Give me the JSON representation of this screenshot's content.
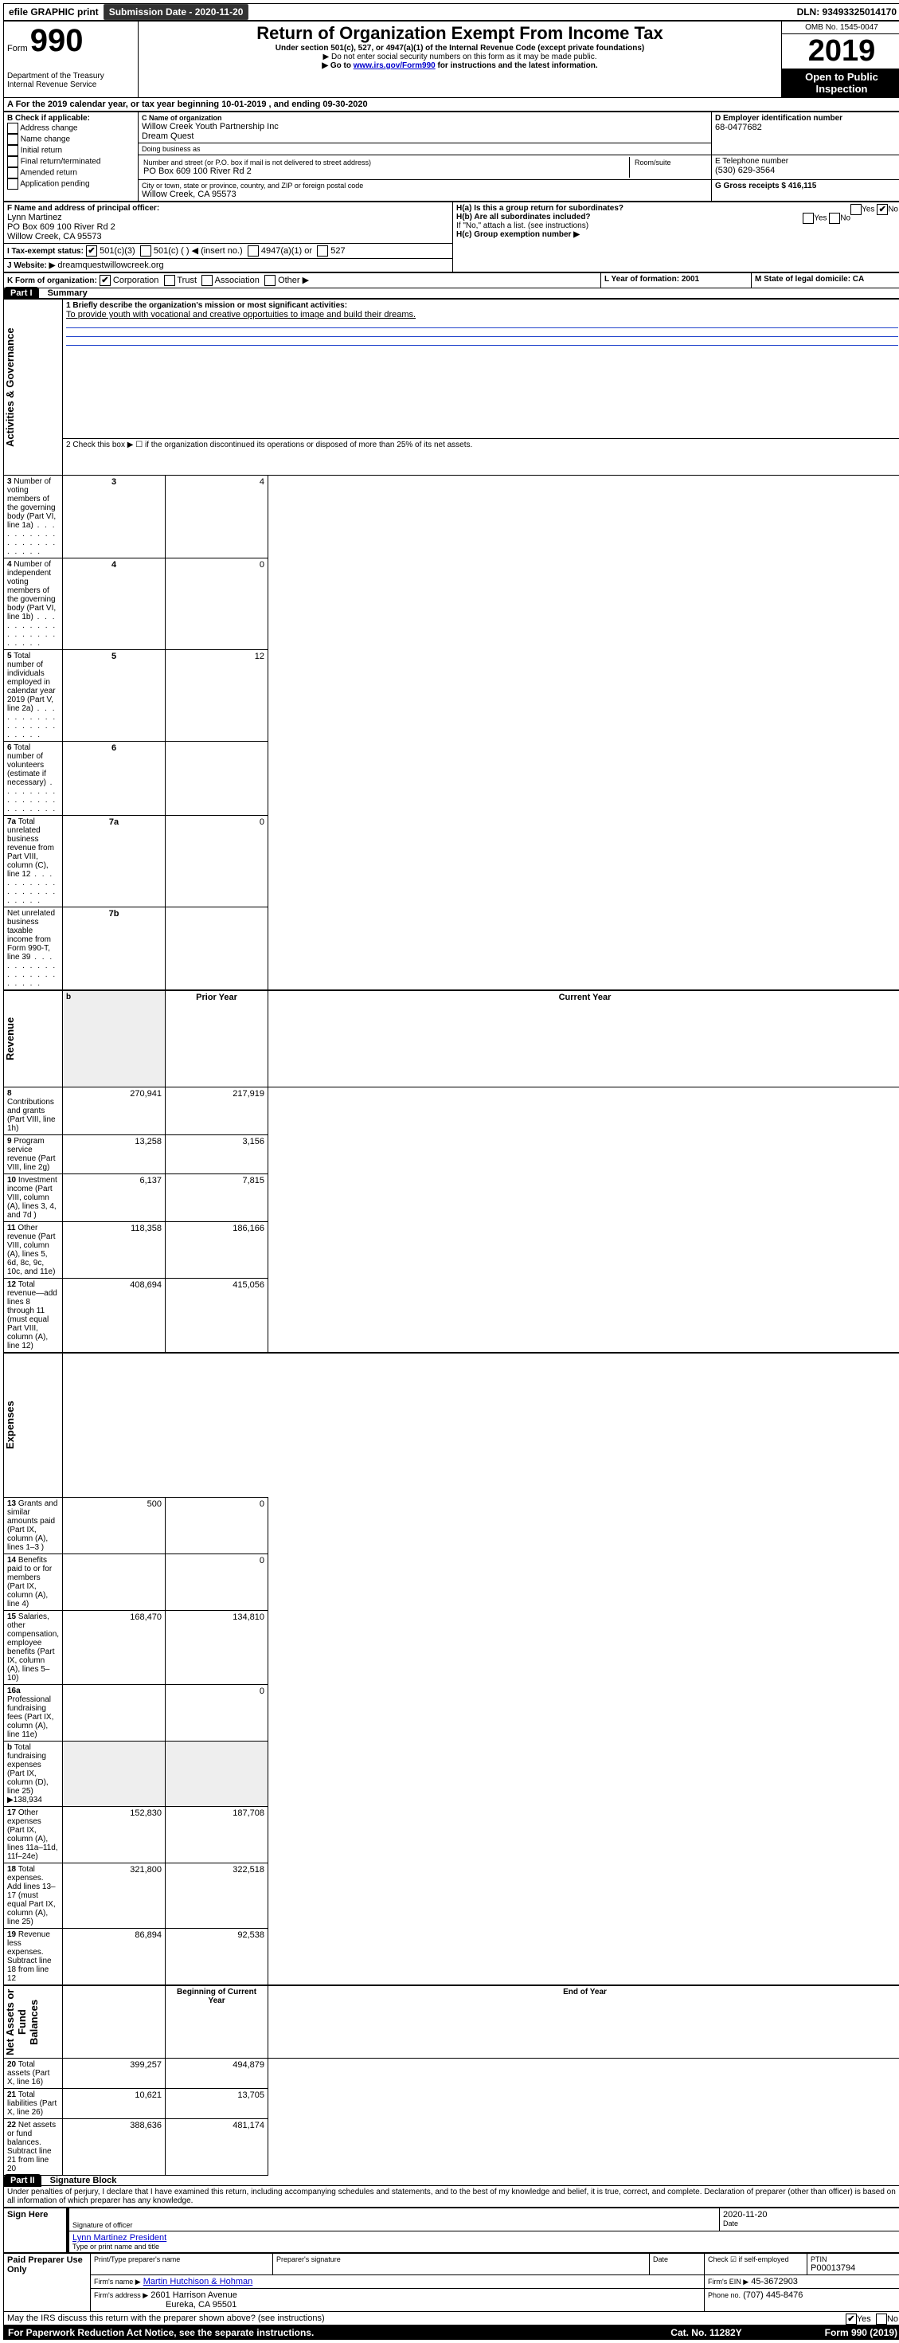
{
  "topbar": {
    "efile": "efile GRAPHIC print",
    "submission_label": "Submission Date - 2020-11-20",
    "dln_label": "DLN: 93493325014170"
  },
  "header": {
    "form_label": "Form",
    "form_number": "990",
    "title": "Return of Organization Exempt From Income Tax",
    "subtitle": "Under section 501(c), 527, or 4947(a)(1) of the Internal Revenue Code (except private foundations)",
    "note1": "▶ Do not enter social security numbers on this form as it may be made public.",
    "note2_pre": "▶ Go to ",
    "note2_link": "www.irs.gov/Form990",
    "note2_post": " for instructions and the latest information.",
    "dept": "Department of the Treasury\nInternal Revenue Service",
    "omb": "OMB No. 1545-0047",
    "year": "2019",
    "open_public": "Open to Public Inspection"
  },
  "A": {
    "line": "A For the 2019 calendar year, or tax year beginning 10-01-2019  , and ending 09-30-2020"
  },
  "B": {
    "title": "B Check if applicable:",
    "opts": [
      "Address change",
      "Name change",
      "Initial return",
      "Final return/terminated",
      "Amended return",
      "Application pending"
    ]
  },
  "C": {
    "name_lbl": "C Name of organization",
    "name": "Willow Creek Youth Partnership Inc",
    "dba_lbl": "Doing business as",
    "dba": "Dream Quest",
    "street_lbl": "Number and street (or P.O. box if mail is not delivered to street address)",
    "room_lbl": "Room/suite",
    "street": "PO Box 609 100 River Rd 2",
    "city_lbl": "City or town, state or province, country, and ZIP or foreign postal code",
    "city": "Willow Creek, CA  95573"
  },
  "D": {
    "lbl": "D Employer identification number",
    "val": "68-0477682"
  },
  "E": {
    "lbl": "E Telephone number",
    "val": "(530) 629-3564"
  },
  "G": {
    "lbl": "G Gross receipts $ 416,115"
  },
  "F": {
    "lbl": "F  Name and address of principal officer:",
    "name": "Lynn Martinez",
    "addr1": "PO Box 609 100 River Rd 2",
    "addr2": "Willow Creek, CA  95573"
  },
  "H": {
    "a": "H(a)  Is this a group return for subordinates?",
    "b": "H(b)  Are all subordinates included?",
    "b_note": "If \"No,\" attach a list. (see instructions)",
    "c": "H(c)  Group exemption number ▶",
    "yes": "Yes",
    "no": "No"
  },
  "I": {
    "lbl": "I   Tax-exempt status:",
    "o1": "501(c)(3)",
    "o2": "501(c) (  ) ◀ (insert no.)",
    "o3": "4947(a)(1) or",
    "o4": "527"
  },
  "J": {
    "lbl": "J   Website: ▶",
    "val": "dreamquestwillowcreek.org"
  },
  "K": {
    "lbl": "K Form of organization:",
    "corp": "Corporation",
    "trust": "Trust",
    "assoc": "Association",
    "other": "Other ▶"
  },
  "L": {
    "lbl": "L Year of formation: 2001"
  },
  "M": {
    "lbl": "M State of legal domicile: CA"
  },
  "partI": {
    "badge": "Part I",
    "title": "Summary",
    "q1_lbl": "1  Briefly describe the organization's mission or most significant activities:",
    "q1_val": "To provide youth with vocational and creative opportuities to image and build their dreams.",
    "q2": "2   Check this box ▶ ☐  if the organization discontinued its operations or disposed of more than 25% of its net assets.",
    "lines": [
      {
        "n": "3",
        "t": "Number of voting members of the governing body (Part VI, line 1a)",
        "box": "3",
        "v": "4"
      },
      {
        "n": "4",
        "t": "Number of independent voting members of the governing body (Part VI, line 1b)",
        "box": "4",
        "v": "0"
      },
      {
        "n": "5",
        "t": "Total number of individuals employed in calendar year 2019 (Part V, line 2a)",
        "box": "5",
        "v": "12"
      },
      {
        "n": "6",
        "t": "Total number of volunteers (estimate if necessary)",
        "box": "6",
        "v": ""
      },
      {
        "n": "7a",
        "t": "Total unrelated business revenue from Part VIII, column (C), line 12",
        "box": "7a",
        "v": "0"
      },
      {
        "n": "",
        "t": "Net unrelated business taxable income from Form 990-T, line 39",
        "box": "7b",
        "v": ""
      }
    ],
    "prior": "Prior Year",
    "current": "Current Year",
    "rev": [
      {
        "n": "8",
        "t": "Contributions and grants (Part VIII, line 1h)",
        "p": "270,941",
        "c": "217,919"
      },
      {
        "n": "9",
        "t": "Program service revenue (Part VIII, line 2g)",
        "p": "13,258",
        "c": "3,156"
      },
      {
        "n": "10",
        "t": "Investment income (Part VIII, column (A), lines 3, 4, and 7d )",
        "p": "6,137",
        "c": "7,815"
      },
      {
        "n": "11",
        "t": "Other revenue (Part VIII, column (A), lines 5, 6d, 8c, 9c, 10c, and 11e)",
        "p": "118,358",
        "c": "186,166"
      },
      {
        "n": "12",
        "t": "Total revenue—add lines 8 through 11 (must equal Part VIII, column (A), line 12)",
        "p": "408,694",
        "c": "415,056"
      }
    ],
    "exp": [
      {
        "n": "13",
        "t": "Grants and similar amounts paid (Part IX, column (A), lines 1–3 )",
        "p": "500",
        "c": "0"
      },
      {
        "n": "14",
        "t": "Benefits paid to or for members (Part IX, column (A), line 4)",
        "p": "",
        "c": "0"
      },
      {
        "n": "15",
        "t": "Salaries, other compensation, employee benefits (Part IX, column (A), lines 5–10)",
        "p": "168,470",
        "c": "134,810"
      },
      {
        "n": "16a",
        "t": "Professional fundraising fees (Part IX, column (A), line 11e)",
        "p": "",
        "c": "0"
      },
      {
        "n": "b",
        "t": "Total fundraising expenses (Part IX, column (D), line 25) ▶138,934",
        "p": "__shade__",
        "c": "__shade__"
      },
      {
        "n": "17",
        "t": "Other expenses (Part IX, column (A), lines 11a–11d, 11f–24e)",
        "p": "152,830",
        "c": "187,708"
      },
      {
        "n": "18",
        "t": "Total expenses. Add lines 13–17 (must equal Part IX, column (A), line 25)",
        "p": "321,800",
        "c": "322,518"
      },
      {
        "n": "19",
        "t": "Revenue less expenses. Subtract line 18 from line 12",
        "p": "86,894",
        "c": "92,538"
      }
    ],
    "begin": "Beginning of Current Year",
    "end": "End of Year",
    "net": [
      {
        "n": "20",
        "t": "Total assets (Part X, line 16)",
        "p": "399,257",
        "c": "494,879"
      },
      {
        "n": "21",
        "t": "Total liabilities (Part X, line 26)",
        "p": "10,621",
        "c": "13,705"
      },
      {
        "n": "22",
        "t": "Net assets or fund balances. Subtract line 21 from line 20",
        "p": "388,636",
        "c": "481,174"
      }
    ],
    "sidelabels": {
      "gov": "Activities & Governance",
      "rev": "Revenue",
      "exp": "Expenses",
      "net": "Net Assets or\nFund Balances"
    }
  },
  "partII": {
    "badge": "Part II",
    "title": "Signature Block",
    "decl": "Under penalties of perjury, I declare that I have examined this return, including accompanying schedules and statements, and to the best of my knowledge and belief, it is true, correct, and complete. Declaration of preparer (other than officer) is based on all information of which preparer has any knowledge.",
    "sign_here": "Sign Here",
    "sig_officer": "Signature of officer",
    "date": "2020-11-20",
    "date_lbl": "Date",
    "officer_name": "Lynn Martinez  President",
    "type_name": "Type or print name and title",
    "paid": "Paid Preparer Use Only",
    "prep_name_lbl": "Print/Type preparer's name",
    "prep_sig_lbl": "Preparer's signature",
    "prep_date_lbl": "Date",
    "check_self": "Check ☑ if self-employed",
    "ptin_lbl": "PTIN",
    "ptin": "P00013794",
    "firm_name_lbl": "Firm's name   ▶",
    "firm_name": "Martin Hutchison & Hohman",
    "firm_ein_lbl": "Firm's EIN ▶",
    "firm_ein": "45-3672903",
    "firm_addr_lbl": "Firm's address ▶",
    "firm_addr1": "2601 Harrison Avenue",
    "firm_addr2": "Eureka, CA  95501",
    "phone_lbl": "Phone no.",
    "phone": "(707) 445-8476",
    "discuss": "May the IRS discuss this return with the preparer shown above? (see instructions)",
    "yes": "Yes",
    "no": "No"
  },
  "footer": {
    "pra": "For Paperwork Reduction Act Notice, see the separate instructions.",
    "cat": "Cat. No. 11282Y",
    "form": "Form 990 (2019)"
  }
}
